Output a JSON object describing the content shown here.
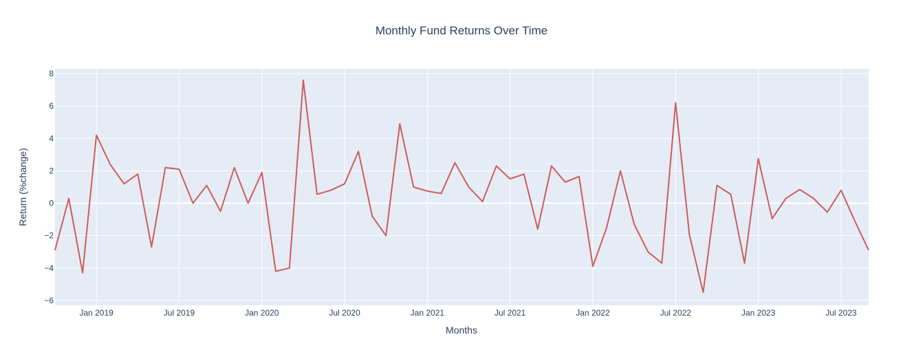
{
  "chart_data": {
    "type": "line",
    "title": "Monthly Fund Returns Over Time",
    "xlabel": "Months",
    "ylabel": "Return (%change)",
    "x_start": "2018-10",
    "x": [
      "2018-10",
      "2018-11",
      "2018-12",
      "2019-01",
      "2019-02",
      "2019-03",
      "2019-04",
      "2019-05",
      "2019-06",
      "2019-07",
      "2019-08",
      "2019-09",
      "2019-10",
      "2019-11",
      "2019-12",
      "2020-01",
      "2020-02",
      "2020-03",
      "2020-04",
      "2020-05",
      "2020-06",
      "2020-07",
      "2020-08",
      "2020-09",
      "2020-10",
      "2020-11",
      "2020-12",
      "2021-01",
      "2021-02",
      "2021-03",
      "2021-04",
      "2021-05",
      "2021-06",
      "2021-07",
      "2021-08",
      "2021-09",
      "2021-10",
      "2021-11",
      "2021-12",
      "2022-01",
      "2022-02",
      "2022-03",
      "2022-04",
      "2022-05",
      "2022-06",
      "2022-07",
      "2022-08",
      "2022-09",
      "2022-10",
      "2022-11",
      "2022-12",
      "2023-01",
      "2023-02",
      "2023-03",
      "2023-04",
      "2023-05",
      "2023-06",
      "2023-07",
      "2023-08",
      "2023-09"
    ],
    "series": [
      {
        "name": "",
        "color": "#cd5c5c",
        "values": [
          -2.9,
          0.3,
          -4.3,
          4.2,
          2.4,
          1.2,
          1.8,
          -2.7,
          2.2,
          2.1,
          0.0,
          1.1,
          -0.5,
          2.2,
          0.0,
          1.9,
          -4.2,
          -4.0,
          7.6,
          0.55,
          0.8,
          1.2,
          3.2,
          -0.8,
          -2.0,
          4.9,
          1.0,
          0.75,
          0.6,
          2.5,
          1.0,
          0.1,
          2.3,
          1.5,
          1.8,
          -1.6,
          2.3,
          1.3,
          1.65,
          -3.9,
          -1.5,
          2.0,
          -1.3,
          -3.0,
          -3.7,
          6.2,
          -1.95,
          -5.5,
          1.1,
          0.55,
          -3.7,
          2.75,
          -0.95,
          0.3,
          0.85,
          0.3,
          -0.55,
          0.8,
          -1.1,
          -2.9
        ]
      }
    ],
    "x_tick_labels": [
      "Jan 2019",
      "Jul 2019",
      "Jan 2020",
      "Jul 2020",
      "Jan 2021",
      "Jul 2021",
      "Jan 2022",
      "Jul 2022",
      "Jan 2023",
      "Jul 2023"
    ],
    "x_tick_dates": [
      "2019-01",
      "2019-07",
      "2020-01",
      "2020-07",
      "2021-01",
      "2021-07",
      "2022-01",
      "2022-07",
      "2023-01",
      "2023-07"
    ],
    "y_ticks": [
      -6,
      -4,
      -2,
      0,
      2,
      4,
      6,
      8
    ],
    "xlim": [
      "2018-10",
      "2023-09"
    ],
    "ylim": [
      -6.3,
      8.3
    ],
    "grid": true,
    "legend": "none",
    "colors": {
      "plot_background": "#e5ecf6",
      "gridline": "#ffffff",
      "text": "#2a3f5f"
    }
  }
}
